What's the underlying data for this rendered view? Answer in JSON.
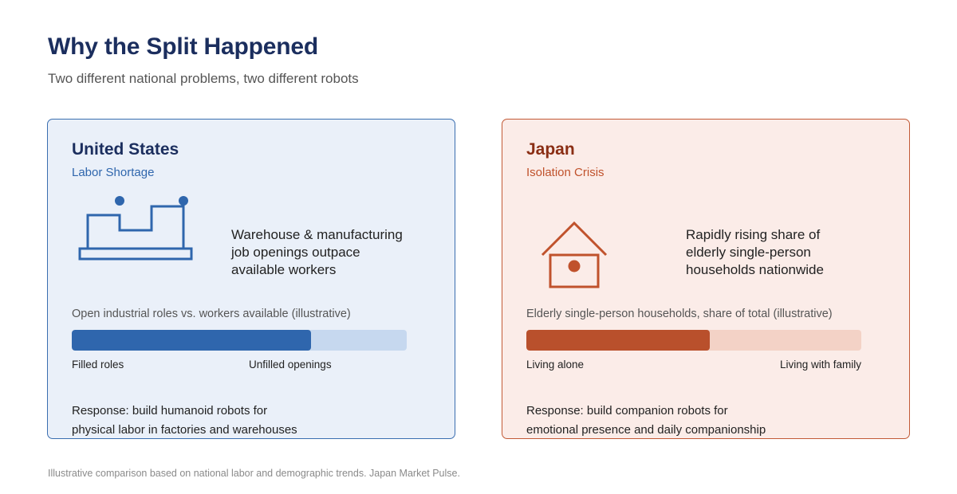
{
  "header": {
    "title": "Why the Split Happened",
    "subtitle": "Two different national problems, two different robots"
  },
  "cards": {
    "us": {
      "title": "United States",
      "subtitle": "Labor Shortage",
      "icon": "factory-icon",
      "description_lines": [
        "Warehouse & manufacturing",
        "job openings outpace",
        "available workers"
      ],
      "bar_caption": "Open industrial roles vs. workers available (illustrative)",
      "bar_fill_fraction": 0.714,
      "bar_left_label": "Filled roles",
      "bar_right_label": "Unfilled openings",
      "response_lines": [
        "Response: build humanoid robots for",
        "physical labor in factories and warehouses"
      ],
      "accent_color": "#2f66ad",
      "track_color": "#c6d8ef",
      "background_color": "#eaf0f9"
    },
    "jp": {
      "title": "Japan",
      "subtitle": "Isolation Crisis",
      "icon": "house-icon",
      "description_lines": [
        "Rapidly rising share of",
        "elderly single-person",
        "households nationwide"
      ],
      "bar_caption": "Elderly single-person households, share of total (illustrative)",
      "bar_fill_fraction": 0.548,
      "bar_left_label": "Living alone",
      "bar_right_label": "Living with family",
      "response_lines": [
        "Response: build companion robots for",
        "emotional presence and daily companionship"
      ],
      "accent_color": "#b9502c",
      "track_color": "#f3d2c6",
      "background_color": "#fbece8"
    }
  },
  "footnote": "Illustrative comparison based on national labor and demographic trends. Japan Market Pulse."
}
